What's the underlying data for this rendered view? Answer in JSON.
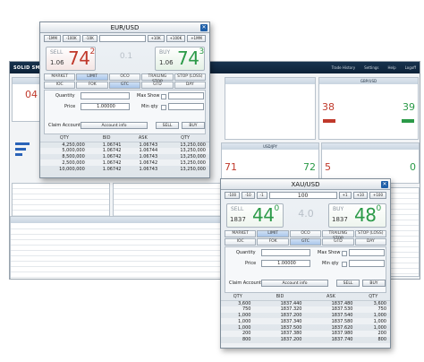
{
  "platform": {
    "logo": "SOLID SMOKE - BID",
    "nav": [
      "Trade History",
      "Settings",
      "Help",
      "Logoff"
    ],
    "tiles": [
      {
        "title": "",
        "sell": "04",
        "buy": ""
      },
      {
        "title": "GBP/USD",
        "sell": "38",
        "buy": "39"
      },
      {
        "title": "USD/JPY",
        "sell": "71",
        "buy": "72"
      },
      {
        "title": "",
        "sell": "5",
        "buy": "0"
      }
    ]
  },
  "eur": {
    "title": "EUR/USD",
    "steps": [
      "-1MM",
      "-100K",
      "-10K",
      "+10K",
      "+100K",
      "+1MM"
    ],
    "amount": "",
    "sell": {
      "label": "SELL",
      "small": "1.06",
      "big": "74",
      "sup": "2"
    },
    "spread": "0.1",
    "buy": {
      "label": "BUY",
      "small": "1.06",
      "big": "74",
      "sup": "3"
    },
    "tabs_top": [
      "MARKET",
      "LIMIT",
      "OCO",
      "TRAILING STOP",
      "STOP (LOSS)"
    ],
    "tabs_bottom": [
      "IOC",
      "FOK",
      "GTC",
      "GTD",
      "DAY"
    ],
    "fields": {
      "quantity": "Quantity",
      "price": "Price",
      "max_show": "Max Show",
      "min_qty": "Min qty",
      "price_value": "1.00000",
      "claim_account": "Claim Account",
      "account_info": "Account info",
      "sell_btn": "SELL",
      "buy_btn": "BUY"
    },
    "headers": [
      "QTY",
      "BID",
      "ASK",
      "QTY"
    ],
    "rows": [
      [
        "4,250,000",
        "1.06741",
        "1.06743",
        "13,250,000"
      ],
      [
        "5,000,000",
        "1.06742",
        "1.06744",
        "13,250,000"
      ],
      [
        "8,500,000",
        "1.06742",
        "1.06743",
        "13,250,000"
      ],
      [
        "2,500,000",
        "1.06742",
        "1.06742",
        "13,250,000"
      ],
      [
        "10,000,000",
        "1.06742",
        "1.06743",
        "13,250,000"
      ]
    ]
  },
  "xau": {
    "title": "XAU/USD",
    "steps": [
      "-100",
      "-10",
      "-1",
      "+1",
      "+10",
      "+100"
    ],
    "amount": "100",
    "sell": {
      "label": "SELL",
      "small": "1837",
      "big": "44",
      "sup": "0"
    },
    "spread": "4.0",
    "buy": {
      "label": "BUY",
      "small": "1837",
      "big": "48",
      "sup": "0"
    },
    "tabs_top": [
      "MARKET",
      "LIMIT",
      "OCO",
      "TRAILING STOP",
      "STOP (LOSS)"
    ],
    "tabs_bottom": [
      "IOC",
      "FOK",
      "GTC",
      "GTD",
      "DAY"
    ],
    "fields": {
      "quantity": "Quantity",
      "price": "Price",
      "max_show": "Max Show",
      "min_qty": "Min qty",
      "price_value": "1.00000",
      "claim_account": "Claim Account",
      "account_info": "Account info",
      "sell_btn": "SELL",
      "buy_btn": "BUY"
    },
    "headers": [
      "QTY",
      "BID",
      "ASK",
      "QTY"
    ],
    "rows": [
      [
        "3,600",
        "1837.440",
        "1837.480",
        "3,600"
      ],
      [
        "750",
        "1837.320",
        "1837.530",
        "750"
      ],
      [
        "1,000",
        "1837.200",
        "1837.540",
        "1,000"
      ],
      [
        "1,000",
        "1837.340",
        "1837.580",
        "1,000"
      ],
      [
        "1,000",
        "1837.500",
        "1837.620",
        "1,000"
      ],
      [
        "200",
        "1837.380",
        "1837.980",
        "200"
      ],
      [
        "800",
        "1837.200",
        "1837.740",
        "800"
      ],
      [
        "",
        "",
        "",
        ""
      ]
    ]
  }
}
